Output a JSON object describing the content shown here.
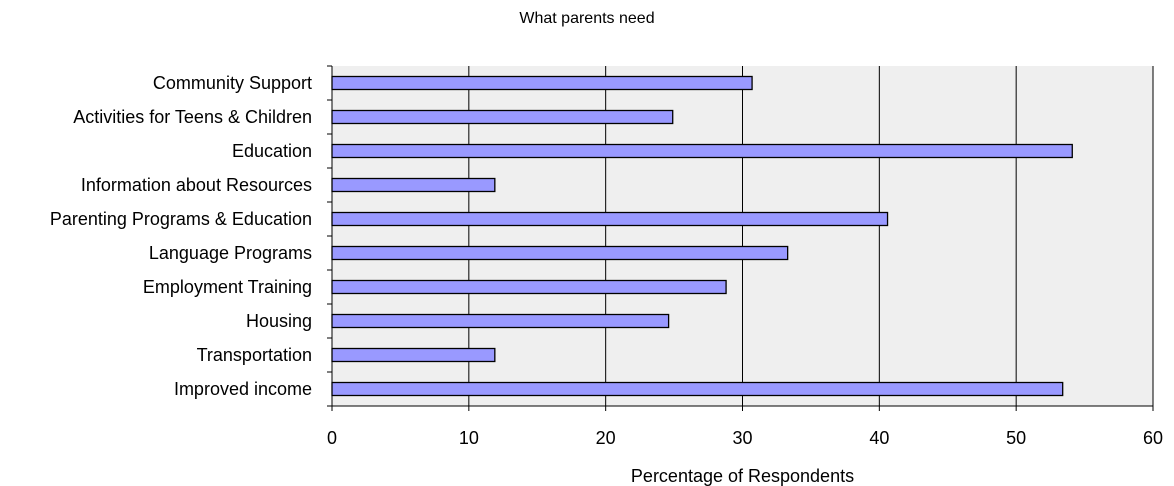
{
  "chart_data": {
    "type": "bar",
    "orientation": "horizontal",
    "title": "What parents need",
    "xlabel": "Percentage of Respondents",
    "ylabel": "",
    "xlim": [
      0,
      60
    ],
    "xticks": [
      0,
      10,
      20,
      30,
      40,
      50,
      60
    ],
    "grid": true,
    "categories": [
      "Community Support",
      "Activities for Teens & Children",
      "Education",
      "Information about Resources",
      "Parenting Programs & Education",
      "Language Programs",
      "Employment Training",
      "Housing",
      "Transportation",
      "Improved income"
    ],
    "values": [
      30.7,
      24.9,
      54.1,
      11.9,
      40.6,
      33.3,
      28.8,
      24.6,
      11.9,
      53.4
    ],
    "colors": {
      "bar_fill": "#9999ff",
      "bar_stroke": "#000000",
      "plot_background": "#efefef",
      "gridline": "#000000"
    }
  }
}
